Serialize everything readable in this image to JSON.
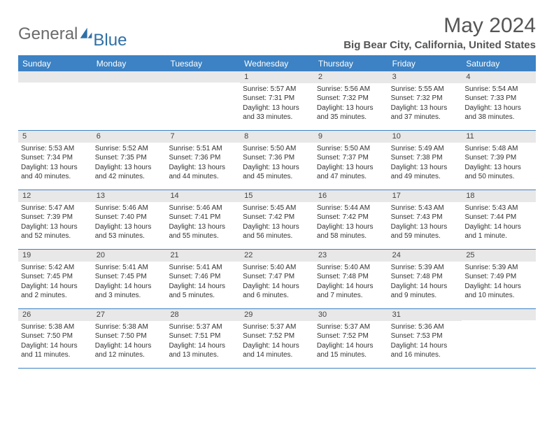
{
  "brand": {
    "text1": "General",
    "text2": "Blue"
  },
  "title": "May 2024",
  "location": "Big Bear City, California, United States",
  "colors": {
    "headerBar": "#3c82c4",
    "bandGray": "#e8e8e8",
    "textMuted": "#555555",
    "logoGray": "#6b6b6b",
    "logoBlue": "#2f6fa7"
  },
  "weekdays": [
    "Sunday",
    "Monday",
    "Tuesday",
    "Wednesday",
    "Thursday",
    "Friday",
    "Saturday"
  ],
  "weeks": [
    [
      {
        "day": "",
        "sunrise": "",
        "sunset": "",
        "daylight1": "",
        "daylight2": ""
      },
      {
        "day": "",
        "sunrise": "",
        "sunset": "",
        "daylight1": "",
        "daylight2": ""
      },
      {
        "day": "",
        "sunrise": "",
        "sunset": "",
        "daylight1": "",
        "daylight2": ""
      },
      {
        "day": "1",
        "sunrise": "Sunrise: 5:57 AM",
        "sunset": "Sunset: 7:31 PM",
        "daylight1": "Daylight: 13 hours",
        "daylight2": "and 33 minutes."
      },
      {
        "day": "2",
        "sunrise": "Sunrise: 5:56 AM",
        "sunset": "Sunset: 7:32 PM",
        "daylight1": "Daylight: 13 hours",
        "daylight2": "and 35 minutes."
      },
      {
        "day": "3",
        "sunrise": "Sunrise: 5:55 AM",
        "sunset": "Sunset: 7:32 PM",
        "daylight1": "Daylight: 13 hours",
        "daylight2": "and 37 minutes."
      },
      {
        "day": "4",
        "sunrise": "Sunrise: 5:54 AM",
        "sunset": "Sunset: 7:33 PM",
        "daylight1": "Daylight: 13 hours",
        "daylight2": "and 38 minutes."
      }
    ],
    [
      {
        "day": "5",
        "sunrise": "Sunrise: 5:53 AM",
        "sunset": "Sunset: 7:34 PM",
        "daylight1": "Daylight: 13 hours",
        "daylight2": "and 40 minutes."
      },
      {
        "day": "6",
        "sunrise": "Sunrise: 5:52 AM",
        "sunset": "Sunset: 7:35 PM",
        "daylight1": "Daylight: 13 hours",
        "daylight2": "and 42 minutes."
      },
      {
        "day": "7",
        "sunrise": "Sunrise: 5:51 AM",
        "sunset": "Sunset: 7:36 PM",
        "daylight1": "Daylight: 13 hours",
        "daylight2": "and 44 minutes."
      },
      {
        "day": "8",
        "sunrise": "Sunrise: 5:50 AM",
        "sunset": "Sunset: 7:36 PM",
        "daylight1": "Daylight: 13 hours",
        "daylight2": "and 45 minutes."
      },
      {
        "day": "9",
        "sunrise": "Sunrise: 5:50 AM",
        "sunset": "Sunset: 7:37 PM",
        "daylight1": "Daylight: 13 hours",
        "daylight2": "and 47 minutes."
      },
      {
        "day": "10",
        "sunrise": "Sunrise: 5:49 AM",
        "sunset": "Sunset: 7:38 PM",
        "daylight1": "Daylight: 13 hours",
        "daylight2": "and 49 minutes."
      },
      {
        "day": "11",
        "sunrise": "Sunrise: 5:48 AM",
        "sunset": "Sunset: 7:39 PM",
        "daylight1": "Daylight: 13 hours",
        "daylight2": "and 50 minutes."
      }
    ],
    [
      {
        "day": "12",
        "sunrise": "Sunrise: 5:47 AM",
        "sunset": "Sunset: 7:39 PM",
        "daylight1": "Daylight: 13 hours",
        "daylight2": "and 52 minutes."
      },
      {
        "day": "13",
        "sunrise": "Sunrise: 5:46 AM",
        "sunset": "Sunset: 7:40 PM",
        "daylight1": "Daylight: 13 hours",
        "daylight2": "and 53 minutes."
      },
      {
        "day": "14",
        "sunrise": "Sunrise: 5:46 AM",
        "sunset": "Sunset: 7:41 PM",
        "daylight1": "Daylight: 13 hours",
        "daylight2": "and 55 minutes."
      },
      {
        "day": "15",
        "sunrise": "Sunrise: 5:45 AM",
        "sunset": "Sunset: 7:42 PM",
        "daylight1": "Daylight: 13 hours",
        "daylight2": "and 56 minutes."
      },
      {
        "day": "16",
        "sunrise": "Sunrise: 5:44 AM",
        "sunset": "Sunset: 7:42 PM",
        "daylight1": "Daylight: 13 hours",
        "daylight2": "and 58 minutes."
      },
      {
        "day": "17",
        "sunrise": "Sunrise: 5:43 AM",
        "sunset": "Sunset: 7:43 PM",
        "daylight1": "Daylight: 13 hours",
        "daylight2": "and 59 minutes."
      },
      {
        "day": "18",
        "sunrise": "Sunrise: 5:43 AM",
        "sunset": "Sunset: 7:44 PM",
        "daylight1": "Daylight: 14 hours",
        "daylight2": "and 1 minute."
      }
    ],
    [
      {
        "day": "19",
        "sunrise": "Sunrise: 5:42 AM",
        "sunset": "Sunset: 7:45 PM",
        "daylight1": "Daylight: 14 hours",
        "daylight2": "and 2 minutes."
      },
      {
        "day": "20",
        "sunrise": "Sunrise: 5:41 AM",
        "sunset": "Sunset: 7:45 PM",
        "daylight1": "Daylight: 14 hours",
        "daylight2": "and 3 minutes."
      },
      {
        "day": "21",
        "sunrise": "Sunrise: 5:41 AM",
        "sunset": "Sunset: 7:46 PM",
        "daylight1": "Daylight: 14 hours",
        "daylight2": "and 5 minutes."
      },
      {
        "day": "22",
        "sunrise": "Sunrise: 5:40 AM",
        "sunset": "Sunset: 7:47 PM",
        "daylight1": "Daylight: 14 hours",
        "daylight2": "and 6 minutes."
      },
      {
        "day": "23",
        "sunrise": "Sunrise: 5:40 AM",
        "sunset": "Sunset: 7:48 PM",
        "daylight1": "Daylight: 14 hours",
        "daylight2": "and 7 minutes."
      },
      {
        "day": "24",
        "sunrise": "Sunrise: 5:39 AM",
        "sunset": "Sunset: 7:48 PM",
        "daylight1": "Daylight: 14 hours",
        "daylight2": "and 9 minutes."
      },
      {
        "day": "25",
        "sunrise": "Sunrise: 5:39 AM",
        "sunset": "Sunset: 7:49 PM",
        "daylight1": "Daylight: 14 hours",
        "daylight2": "and 10 minutes."
      }
    ],
    [
      {
        "day": "26",
        "sunrise": "Sunrise: 5:38 AM",
        "sunset": "Sunset: 7:50 PM",
        "daylight1": "Daylight: 14 hours",
        "daylight2": "and 11 minutes."
      },
      {
        "day": "27",
        "sunrise": "Sunrise: 5:38 AM",
        "sunset": "Sunset: 7:50 PM",
        "daylight1": "Daylight: 14 hours",
        "daylight2": "and 12 minutes."
      },
      {
        "day": "28",
        "sunrise": "Sunrise: 5:37 AM",
        "sunset": "Sunset: 7:51 PM",
        "daylight1": "Daylight: 14 hours",
        "daylight2": "and 13 minutes."
      },
      {
        "day": "29",
        "sunrise": "Sunrise: 5:37 AM",
        "sunset": "Sunset: 7:52 PM",
        "daylight1": "Daylight: 14 hours",
        "daylight2": "and 14 minutes."
      },
      {
        "day": "30",
        "sunrise": "Sunrise: 5:37 AM",
        "sunset": "Sunset: 7:52 PM",
        "daylight1": "Daylight: 14 hours",
        "daylight2": "and 15 minutes."
      },
      {
        "day": "31",
        "sunrise": "Sunrise: 5:36 AM",
        "sunset": "Sunset: 7:53 PM",
        "daylight1": "Daylight: 14 hours",
        "daylight2": "and 16 minutes."
      },
      {
        "day": "",
        "sunrise": "",
        "sunset": "",
        "daylight1": "",
        "daylight2": ""
      }
    ]
  ]
}
